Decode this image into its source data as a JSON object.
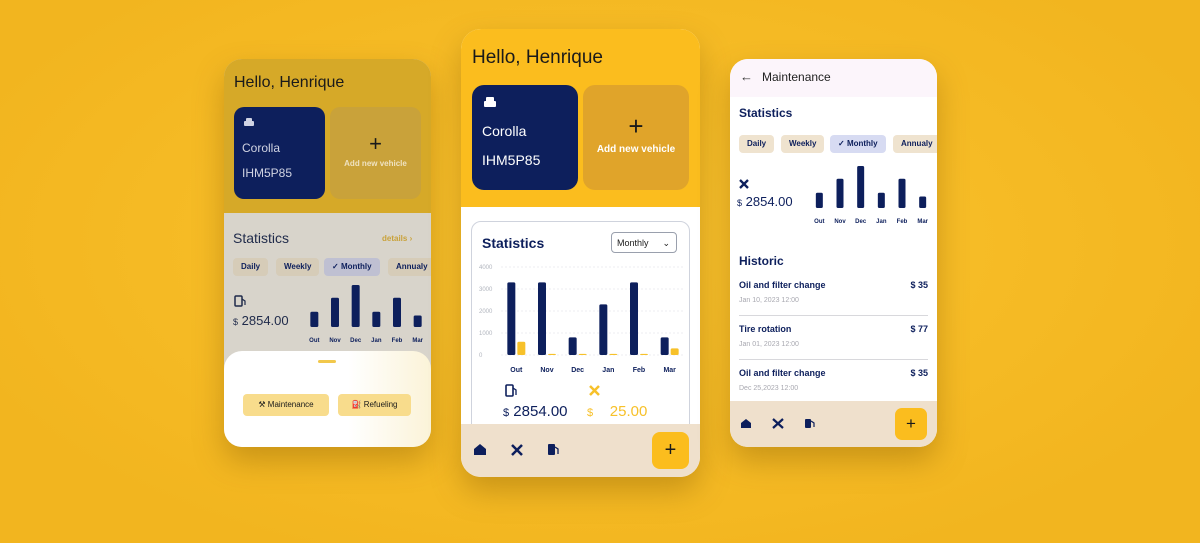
{
  "screens": [
    {
      "greeting": "Hello, Henrique",
      "vehicle_name": "Corolla",
      "vehicle_plate": "IHM5P85",
      "add_vehicle": "Add new vehicle",
      "statistics": "Statistics",
      "details": "details",
      "tabs": [
        "Daily",
        "Weekly",
        "Monthly",
        "Annualy"
      ],
      "currency": "$",
      "total": "2854.00",
      "chart": {
        "type": "bar",
        "categories": [
          "Out",
          "Nov",
          "Dec",
          "Jan",
          "Feb",
          "Mar"
        ],
        "series": [
          {
            "color": "#0d1f5c",
            "values": [
              1200,
              2300,
              3300,
              1200,
              2300,
              900
            ]
          }
        ]
      },
      "sheet_actions": [
        "Maintenance",
        "Refueling"
      ]
    },
    {
      "greeting": "Hello, Henrique",
      "vehicle_name": "Corolla",
      "vehicle_plate": "IHM5P85",
      "add_vehicle": "Add new vehicle",
      "statistics": "Statistics",
      "period": "Monthly",
      "chart": {
        "type": "bar",
        "categories": [
          "Out",
          "Nov",
          "Dec",
          "Jan",
          "Feb",
          "Mar"
        ],
        "series": [
          {
            "color": "#0d1f5c",
            "values": [
              3300,
              3300,
              800,
              2300,
              3300,
              800
            ]
          },
          {
            "color": "#f7c12a",
            "values": [
              600,
              50,
              50,
              50,
              50,
              300
            ]
          }
        ],
        "ylim": [
          0,
          4000
        ],
        "yticks": [
          0,
          1000,
          2000,
          3000,
          4000
        ],
        "grid": true
      },
      "currency": "$",
      "fuel_total": "2854.00",
      "maintenance_total": "25.00"
    },
    {
      "title": "Maintenance",
      "statistics": "Statistics",
      "tabs": [
        "Daily",
        "Weekly",
        "Monthly",
        "Annualy"
      ],
      "currency": "$",
      "total": "2854.00",
      "chart": {
        "type": "bar",
        "categories": [
          "Out",
          "Nov",
          "Dec",
          "Jan",
          "Feb",
          "Mar"
        ],
        "series": [
          {
            "color": "#0d1f5c",
            "values": [
              1200,
              2300,
              3300,
              1200,
              2300,
              900
            ]
          }
        ]
      },
      "historic": "Historic",
      "items": [
        {
          "name": "Oil and filter change",
          "date": "Jan 10, 2023  12:00",
          "amount": "$ 35"
        },
        {
          "name": "Tire rotation",
          "date": "Jan 01, 2023  12:00",
          "amount": "$ 77"
        },
        {
          "name": "Oil and filter change",
          "date": "Dec 25,2023  12:00",
          "amount": "$ 35"
        }
      ]
    }
  ]
}
